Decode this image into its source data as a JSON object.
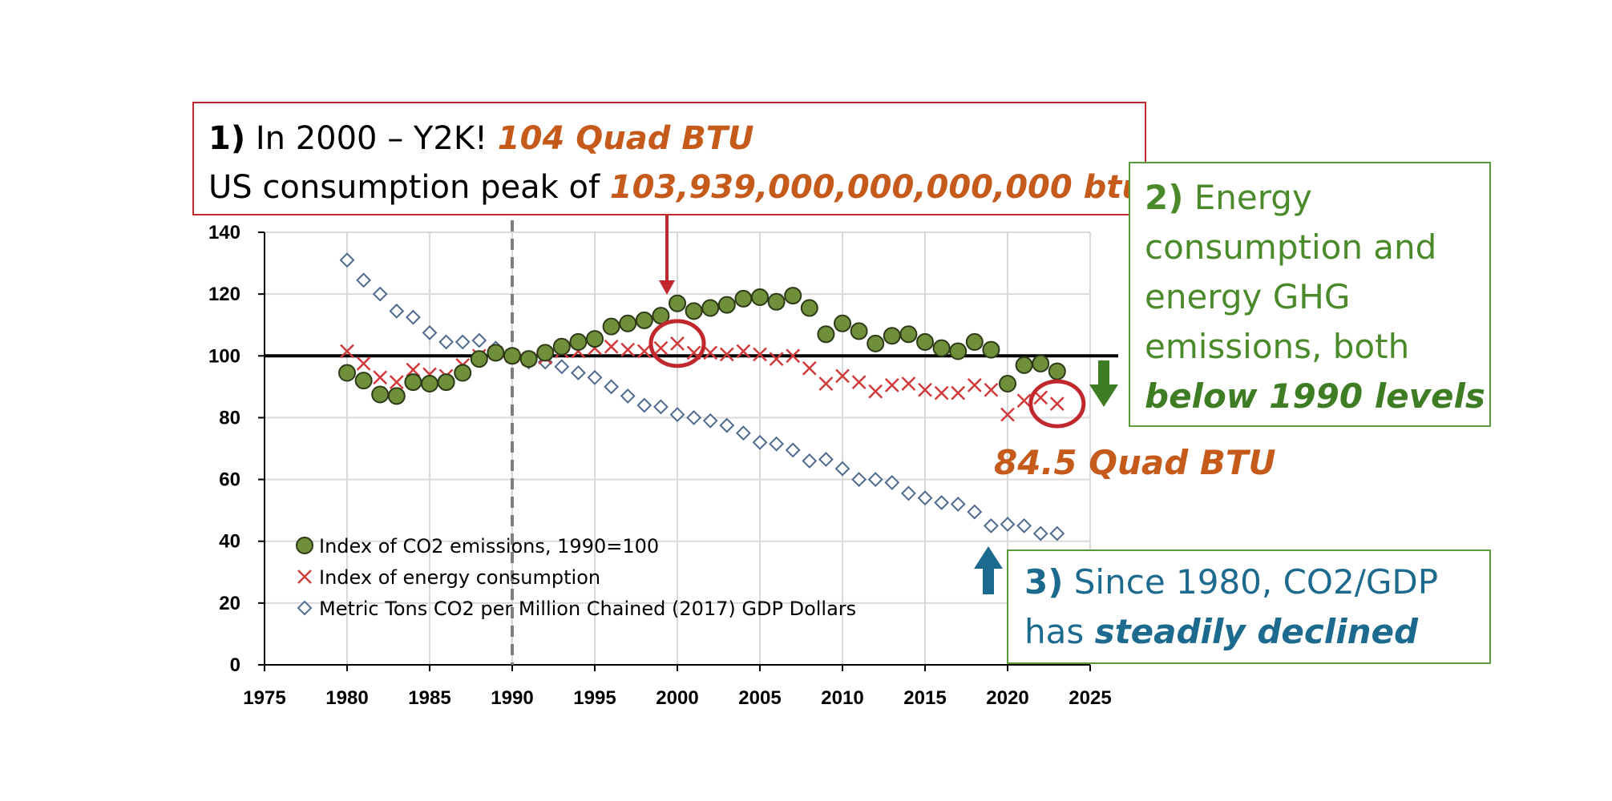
{
  "chart_data": {
    "type": "scatter",
    "x_ticks": [
      "1975",
      "1980",
      "1985",
      "1990",
      "1995",
      "2000",
      "2005",
      "2010",
      "2015",
      "2020",
      "2025"
    ],
    "y_ticks": [
      "0",
      "20",
      "40",
      "60",
      "80",
      "100",
      "120",
      "140"
    ],
    "xlim": [
      1975,
      2025
    ],
    "ylim": [
      0,
      140
    ],
    "grid": true,
    "reference_line_y": 100,
    "reference_line_x": 1990,
    "legend_position": "bottom-left",
    "series": [
      {
        "name": "Index of CO2 emissions, 1990=100",
        "marker": "circle",
        "color": "#6f8f3a",
        "x": [
          1980,
          1981,
          1982,
          1983,
          1984,
          1985,
          1986,
          1987,
          1988,
          1989,
          1990,
          1991,
          1992,
          1993,
          1994,
          1995,
          1996,
          1997,
          1998,
          1999,
          2000,
          2001,
          2002,
          2003,
          2004,
          2005,
          2006,
          2007,
          2008,
          2009,
          2010,
          2011,
          2012,
          2013,
          2014,
          2015,
          2016,
          2017,
          2018,
          2019,
          2020,
          2021,
          2022,
          2023
        ],
        "y": [
          94.5,
          92,
          87.5,
          87,
          91.5,
          91,
          91.5,
          94.5,
          99,
          101,
          100,
          99,
          101,
          103,
          104.5,
          105.5,
          109.5,
          110.5,
          111.5,
          113,
          117,
          114.5,
          115.5,
          116.5,
          118.5,
          119,
          117.5,
          119.5,
          115.5,
          107,
          110.5,
          108,
          104,
          106.5,
          107,
          104.5,
          102.5,
          101.5,
          104.5,
          102,
          91,
          97,
          97.5,
          95
        ]
      },
      {
        "name": "Index of energy consumption",
        "marker": "x",
        "color": "#d03a3a",
        "x": [
          1980,
          1981,
          1982,
          1983,
          1984,
          1985,
          1986,
          1987,
          1988,
          1989,
          1990,
          1991,
          1992,
          1993,
          1994,
          1995,
          1996,
          1997,
          1998,
          1999,
          2000,
          2001,
          2002,
          2003,
          2004,
          2005,
          2006,
          2007,
          2008,
          2009,
          2010,
          2011,
          2012,
          2013,
          2014,
          2015,
          2016,
          2017,
          2018,
          2019,
          2020,
          2021,
          2022,
          2023
        ],
        "y": [
          101.5,
          97.5,
          93,
          91.5,
          95.5,
          94,
          93.5,
          97,
          100,
          101,
          100,
          99,
          99.5,
          101.5,
          101.5,
          102.5,
          103,
          102,
          101.5,
          102.5,
          104,
          101,
          101,
          100.5,
          101.5,
          100.5,
          99,
          100,
          96,
          91,
          93.5,
          91.5,
          88.5,
          90.5,
          91,
          89,
          88,
          88,
          90.5,
          89,
          81,
          85.5,
          86.5,
          84.5
        ]
      },
      {
        "name": "Metric Tons CO2 per Million Chained (2017) GDP Dollars",
        "marker": "diamond",
        "color": "#4e6a8e",
        "x": [
          1980,
          1981,
          1982,
          1983,
          1984,
          1985,
          1986,
          1987,
          1988,
          1989,
          1990,
          1991,
          1992,
          1993,
          1994,
          1995,
          1996,
          1997,
          1998,
          1999,
          2000,
          2001,
          2002,
          2003,
          2004,
          2005,
          2006,
          2007,
          2008,
          2009,
          2010,
          2011,
          2012,
          2013,
          2014,
          2015,
          2016,
          2017,
          2018,
          2019,
          2020,
          2021,
          2022,
          2023
        ],
        "y": [
          131,
          124.5,
          120,
          114.5,
          112.5,
          107.5,
          104.5,
          104.5,
          105,
          102.5,
          100,
          98,
          98,
          96.5,
          94.5,
          93,
          90,
          87,
          84,
          83.5,
          81,
          80,
          79,
          77.5,
          75,
          72,
          71.5,
          69.5,
          66,
          66.5,
          63.5,
          60,
          60,
          59,
          55.5,
          54,
          52.5,
          52,
          49.5,
          45,
          45.5,
          45,
          42.5,
          42.5
        ]
      }
    ]
  },
  "annotations": {
    "box1": {
      "num": "1)",
      "line1_a": " In 2000 – Y2K!  ",
      "line1_b": "104 Quad BTU",
      "line2_a": "US consumption peak of ",
      "line2_b": "103,939,000,000,000,000 btu"
    },
    "box2": {
      "num": "2)",
      "text": " Energy consumption and energy GHG emissions, both ",
      "emph": "below 1990 levels"
    },
    "box3": {
      "num": "3)",
      "text": " Since 1980, CO2/GDP has ",
      "emph": "steadily declined"
    },
    "label_845": "84.5 Quad BTU"
  },
  "colors": {
    "red": "#c0282d",
    "green": "#4a8a2a",
    "blue": "#1c6a8e",
    "orange": "#c55a1b"
  }
}
